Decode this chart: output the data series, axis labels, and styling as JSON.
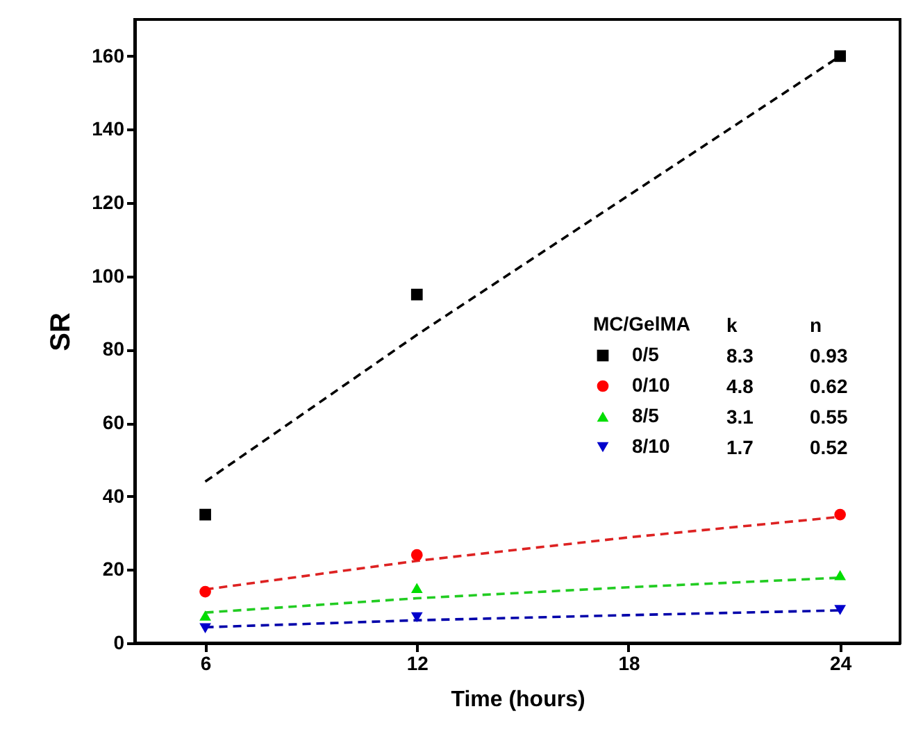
{
  "chart_data": {
    "type": "scatter",
    "xlabel": "Time (hours)",
    "ylabel": "SR",
    "legend_title": "MC/GelMA",
    "xlim": [
      4,
      25.7
    ],
    "xticks": [
      6,
      12,
      18,
      24
    ],
    "ylim": [
      0,
      170
    ],
    "yticks": [
      0,
      20,
      40,
      60,
      80,
      100,
      120,
      140,
      160
    ],
    "grid": false,
    "legend": "right",
    "annotations": [
      "k",
      "n",
      "8.3",
      "0.93",
      "4.8",
      "0.62",
      "3.1",
      "0.55",
      "1.7",
      "0.52"
    ],
    "series": [
      {
        "name": "0/5",
        "type": "scatter",
        "marker": "square",
        "color": "#000000",
        "x": [
          6,
          12,
          24
        ],
        "values": [
          35,
          95,
          160
        ]
      },
      {
        "name": "0/10",
        "type": "scatter",
        "marker": "circle",
        "color": "#ff0000",
        "x": [
          6,
          12,
          24
        ],
        "values": [
          14,
          24,
          35
        ]
      },
      {
        "name": "8/5",
        "type": "scatter",
        "marker": "triangle",
        "color": "#00dd00",
        "x": [
          6,
          12,
          24
        ],
        "values": [
          7.5,
          15,
          18.5
        ]
      },
      {
        "name": "8/10",
        "type": "scatter",
        "marker": "triangle_down",
        "color": "#0000cc",
        "x": [
          6,
          12,
          24
        ],
        "values": [
          4,
          7,
          9
        ]
      },
      {
        "type": "line",
        "line_style": "dashed",
        "marker": "none",
        "color": "#000000",
        "x": [
          6,
          12,
          18,
          24
        ],
        "values": [
          44,
          84,
          122,
          160
        ]
      },
      {
        "type": "line",
        "line_style": "dashed",
        "marker": "none",
        "color": "#dd2222",
        "x": [
          6,
          12,
          18,
          24
        ],
        "values": [
          14.6,
          22.4,
          28.8,
          34.4
        ]
      },
      {
        "type": "line",
        "line_style": "dashed",
        "marker": "none",
        "color": "#22cc22",
        "x": [
          6,
          12,
          18,
          24
        ],
        "values": [
          8.3,
          12.2,
          15.2,
          17.8
        ]
      },
      {
        "type": "line",
        "line_style": "dashed",
        "marker": "none",
        "color": "#0000aa",
        "x": [
          6,
          12,
          18,
          24
        ],
        "values": [
          4.3,
          6.2,
          7.6,
          8.9
        ]
      }
    ]
  }
}
